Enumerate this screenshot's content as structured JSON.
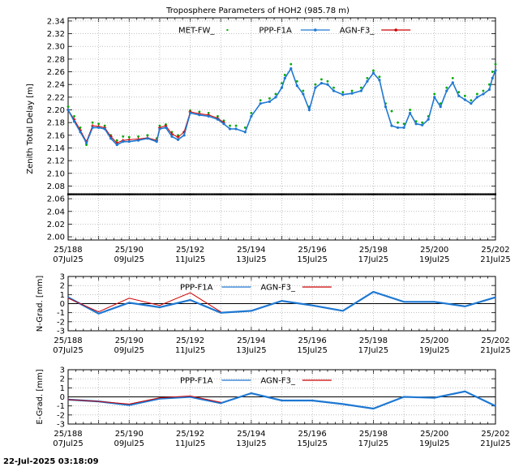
{
  "footer": {
    "timestamp": "22-Jul-2025 03:18:09"
  },
  "x_axis": {
    "range": [
      188,
      202
    ],
    "ticks": [
      {
        "doy": 188,
        "top": "25/188",
        "bottom": "07Jul25"
      },
      {
        "doy": 190,
        "top": "25/190",
        "bottom": "09Jul25"
      },
      {
        "doy": 192,
        "top": "25/192",
        "bottom": "11Jul25"
      },
      {
        "doy": 194,
        "top": "25/194",
        "bottom": "13Jul25"
      },
      {
        "doy": 196,
        "top": "25/196",
        "bottom": "15Jul25"
      },
      {
        "doy": 198,
        "top": "25/198",
        "bottom": "17Jul25"
      },
      {
        "doy": 200,
        "top": "25/200",
        "bottom": "19Jul25"
      },
      {
        "doy": 202,
        "top": "25/202",
        "bottom": "21Jul25"
      }
    ]
  },
  "chart_data": [
    {
      "type": "line",
      "title": "Troposphere Parameters of HOH2 (985.78 m)",
      "ylabel": "Zenith Total Delay [m]",
      "ylim": [
        1.995,
        2.345
      ],
      "yticks": [
        2.0,
        2.02,
        2.04,
        2.06,
        2.08,
        2.1,
        2.12,
        2.14,
        2.16,
        2.18,
        2.2,
        2.22,
        2.24,
        2.26,
        2.28,
        2.3,
        2.32,
        2.34
      ],
      "grid": true,
      "legend": "top",
      "series": [
        {
          "name": "MET-FW_",
          "color": "#000000",
          "style": "dense-dots",
          "x": [
            188,
            202
          ],
          "y": [
            2.067,
            2.067
          ]
        },
        {
          "name": "PPP-F1A",
          "color": "#00aa00",
          "style": "dots",
          "x": [
            188.0,
            188.2,
            188.4,
            188.6,
            188.8,
            189.0,
            189.2,
            189.4,
            189.6,
            189.8,
            190.0,
            190.3,
            190.6,
            190.9,
            191.0,
            191.2,
            191.4,
            191.6,
            191.8,
            192.0,
            192.3,
            192.6,
            192.9,
            193.1,
            193.3,
            193.5,
            193.8,
            194.0,
            194.3,
            194.6,
            194.8,
            195.0,
            195.1,
            195.3,
            195.5,
            195.7,
            195.9,
            196.1,
            196.3,
            196.5,
            196.7,
            197.0,
            197.3,
            197.6,
            197.8,
            198.0,
            198.2,
            198.4,
            198.6,
            198.8,
            199.0,
            199.2,
            199.4,
            199.6,
            199.8,
            200.0,
            200.2,
            200.4,
            200.6,
            200.8,
            201.0,
            201.2,
            201.4,
            201.6,
            201.8,
            201.9,
            202.0
          ],
          "y": [
            2.205,
            2.19,
            2.172,
            2.145,
            2.18,
            2.178,
            2.175,
            2.16,
            2.152,
            2.158,
            2.157,
            2.158,
            2.16,
            2.155,
            2.175,
            2.177,
            2.165,
            2.16,
            2.165,
            2.199,
            2.197,
            2.195,
            2.19,
            2.183,
            2.175,
            2.175,
            2.172,
            2.195,
            2.215,
            2.218,
            2.225,
            2.242,
            2.255,
            2.272,
            2.245,
            2.23,
            2.205,
            2.24,
            2.248,
            2.245,
            2.235,
            2.228,
            2.23,
            2.235,
            2.25,
            2.262,
            2.252,
            2.21,
            2.198,
            2.18,
            2.178,
            2.2,
            2.182,
            2.18,
            2.19,
            2.225,
            2.21,
            2.235,
            2.25,
            2.228,
            2.222,
            2.215,
            2.225,
            2.23,
            2.24,
            2.26,
            2.272
          ]
        },
        {
          "name": "AGN-F3_",
          "color": "#cc0000",
          "style": "line-cross",
          "x": [
            188.0,
            188.2,
            188.4,
            188.6,
            188.8,
            189.0,
            189.2,
            189.4,
            189.6,
            189.8,
            190.0,
            190.3,
            190.6,
            190.9,
            191.0,
            191.2,
            191.4,
            191.6,
            191.8,
            192.0,
            192.3,
            192.6,
            192.9,
            193.1
          ],
          "y": [
            2.2,
            2.185,
            2.168,
            2.15,
            2.175,
            2.174,
            2.172,
            2.158,
            2.148,
            2.152,
            2.153,
            2.154,
            2.156,
            2.152,
            2.172,
            2.175,
            2.162,
            2.157,
            2.165,
            2.197,
            2.194,
            2.192,
            2.187,
            2.18
          ]
        },
        {
          "name": "PPP-F1A (blue)",
          "color": "#1e78d2",
          "style": "line-dots",
          "x": [
            188.0,
            188.2,
            188.4,
            188.6,
            188.8,
            189.0,
            189.2,
            189.4,
            189.6,
            189.8,
            190.0,
            190.3,
            190.6,
            190.9,
            191.0,
            191.2,
            191.4,
            191.6,
            191.8,
            192.0,
            192.3,
            192.6,
            192.9,
            193.1,
            193.3,
            193.5,
            193.8,
            194.0,
            194.3,
            194.6,
            194.8,
            195.0,
            195.1,
            195.3,
            195.5,
            195.7,
            195.9,
            196.1,
            196.3,
            196.5,
            196.7,
            197.0,
            197.3,
            197.6,
            197.8,
            198.0,
            198.2,
            198.4,
            198.6,
            198.8,
            199.0,
            199.2,
            199.4,
            199.6,
            199.8,
            200.0,
            200.2,
            200.4,
            200.6,
            200.8,
            201.0,
            201.2,
            201.4,
            201.6,
            201.8,
            201.9,
            202.0
          ],
          "y": [
            2.2,
            2.182,
            2.165,
            2.148,
            2.172,
            2.172,
            2.17,
            2.155,
            2.145,
            2.15,
            2.15,
            2.152,
            2.155,
            2.15,
            2.17,
            2.172,
            2.158,
            2.153,
            2.16,
            2.195,
            2.192,
            2.19,
            2.185,
            2.178,
            2.17,
            2.17,
            2.165,
            2.19,
            2.21,
            2.213,
            2.22,
            2.235,
            2.25,
            2.265,
            2.238,
            2.225,
            2.2,
            2.235,
            2.242,
            2.24,
            2.23,
            2.224,
            2.226,
            2.23,
            2.245,
            2.258,
            2.247,
            2.205,
            2.175,
            2.172,
            2.172,
            2.195,
            2.178,
            2.176,
            2.185,
            2.22,
            2.205,
            2.23,
            2.243,
            2.222,
            2.216,
            2.21,
            2.22,
            2.225,
            2.232,
            2.25,
            2.262
          ]
        }
      ]
    },
    {
      "type": "line",
      "ylabel": "N-Grad. [mm]",
      "ylim": [
        -3,
        3
      ],
      "yticks": [
        -3,
        -2,
        -1,
        0,
        1,
        2,
        3
      ],
      "grid": true,
      "legend": "top",
      "series": [
        {
          "name": "PPP-F1A",
          "color": "#1e78d2",
          "style": "thick-line",
          "x": [
            188,
            189,
            190,
            191,
            192,
            193,
            194,
            195,
            196,
            197,
            198,
            199,
            200,
            201,
            202
          ],
          "y": [
            0.7,
            -1.1,
            0.1,
            -0.4,
            0.4,
            -1.0,
            -0.8,
            0.3,
            -0.2,
            -0.8,
            1.3,
            0.2,
            0.2,
            -0.3,
            0.7
          ]
        },
        {
          "name": "AGN-F3_",
          "color": "#cc0000",
          "style": "line",
          "x": [
            188,
            189,
            190,
            191,
            192,
            193
          ],
          "y": [
            0.6,
            -0.9,
            0.6,
            -0.2,
            1.2,
            -0.9
          ]
        }
      ]
    },
    {
      "type": "line",
      "ylabel": "E-Grad. [mm]",
      "ylim": [
        -3,
        3
      ],
      "yticks": [
        -3,
        -2,
        -1,
        0,
        1,
        2,
        3
      ],
      "grid": true,
      "legend": "top",
      "series": [
        {
          "name": "PPP-F1A",
          "color": "#1e78d2",
          "style": "thick-line",
          "x": [
            188,
            189,
            190,
            191,
            192,
            193,
            194,
            195,
            196,
            197,
            198,
            199,
            200,
            201,
            202
          ],
          "y": [
            -0.3,
            -0.5,
            -0.9,
            -0.2,
            0.0,
            -0.7,
            0.4,
            -0.4,
            -0.4,
            -0.8,
            -1.3,
            0.0,
            -0.1,
            0.6,
            -1.0
          ]
        },
        {
          "name": "AGN-F3_",
          "color": "#cc0000",
          "style": "line",
          "x": [
            188,
            189,
            190,
            191,
            192,
            193
          ],
          "y": [
            -0.3,
            -0.5,
            -0.8,
            -0.1,
            0.1,
            -0.6
          ]
        }
      ]
    }
  ]
}
